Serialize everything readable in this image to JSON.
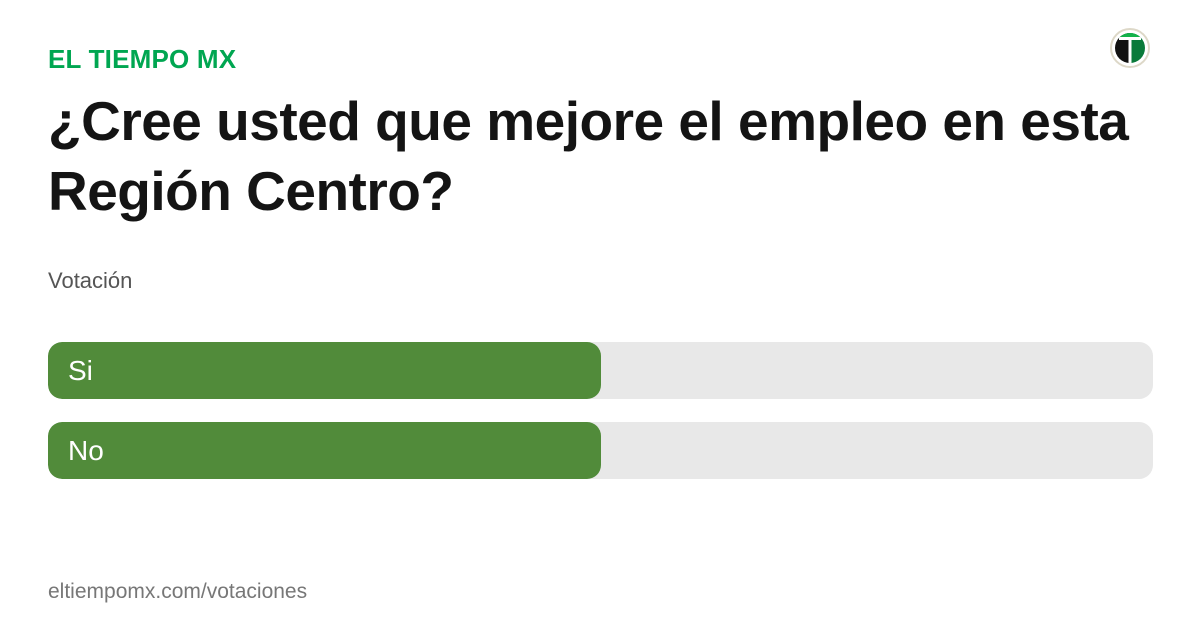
{
  "brand": "EL TIEMPO MX",
  "logo_icon": "el-tiempo-logo",
  "question": "¿Cree usted que mejore el empleo en esta Región Centro?",
  "subtitle": "Votación",
  "options": [
    {
      "label": "Si",
      "percent": 50
    },
    {
      "label": "No",
      "percent": 50
    }
  ],
  "footer_url": "eltiempomx.com/votaciones",
  "colors": {
    "brand": "#00a651",
    "bar_fill": "#518b3a",
    "bar_track": "#e8e8e8"
  }
}
